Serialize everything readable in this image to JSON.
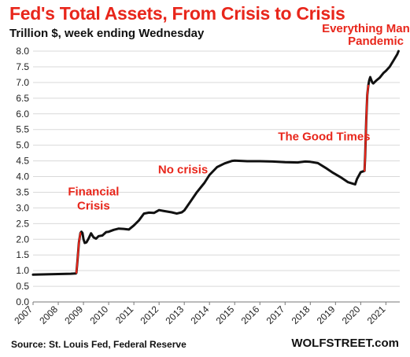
{
  "header": {
    "title": "Fed's Total Assets, From Crisis to Crisis",
    "subtitle": "Trillion $, week ending Wednesday"
  },
  "footer": {
    "source": "Source: St. Louis Fed, Federal Reserve",
    "brand": "WOLFSTREET.com"
  },
  "colors": {
    "title": "#e8261b",
    "annotation": "#e8261b",
    "line": "#111111",
    "crisis_segment": "#e8261b",
    "grid": "#d9d9d9",
    "axis": "#777777"
  },
  "chart_data": {
    "type": "line",
    "title": "Fed's Total Assets, From Crisis to Crisis",
    "subtitle": "Trillion $, week ending Wednesday",
    "xlabel": "",
    "ylabel": "",
    "xlim": [
      2007,
      2021.55
    ],
    "ylim": [
      0,
      8.0
    ],
    "yticks": [
      "0.0",
      "0.5",
      "1.0",
      "1.5",
      "2.0",
      "2.5",
      "3.0",
      "3.5",
      "4.0",
      "4.5",
      "5.0",
      "5.5",
      "6.0",
      "6.5",
      "7.0",
      "7.5",
      "8.0"
    ],
    "xticks": [
      "2007",
      "2008",
      "2009",
      "2010",
      "2011",
      "2012",
      "2013",
      "2014",
      "2015",
      "2016",
      "2017",
      "2018",
      "2019",
      "2020",
      "2021"
    ],
    "grid": "horizontal",
    "series": [
      {
        "x": [
          2007.0,
          2007.5,
          2008.0,
          2008.5,
          2008.7,
          2008.72,
          2008.76,
          2008.82,
          2008.88,
          2008.92,
          2008.96,
          2009.0,
          2009.05,
          2009.12,
          2009.2,
          2009.3,
          2009.4,
          2009.5,
          2009.6,
          2009.75,
          2009.9,
          2010.0,
          2010.2,
          2010.4,
          2010.6,
          2010.8,
          2011.0,
          2011.2,
          2011.4,
          2011.6,
          2011.8,
          2012.0,
          2012.2,
          2012.5,
          2012.7,
          2012.9,
          2013.0,
          2013.2,
          2013.5,
          2013.8,
          2014.0,
          2014.3,
          2014.6,
          2014.9,
          2015.0,
          2015.5,
          2016.0,
          2016.5,
          2017.0,
          2017.5,
          2017.8,
          2018.0,
          2018.3,
          2018.6,
          2018.9,
          2019.2,
          2019.5,
          2019.7,
          2019.78,
          2019.85,
          2020.0,
          2020.15,
          2020.18,
          2020.22,
          2020.26,
          2020.3,
          2020.34,
          2020.38,
          2020.42,
          2020.46,
          2020.5,
          2020.6,
          2020.75,
          2020.9,
          2021.0,
          2021.15,
          2021.3,
          2021.45,
          2021.5
        ],
        "y": [
          0.87,
          0.88,
          0.89,
          0.9,
          0.91,
          0.93,
          1.3,
          1.9,
          2.2,
          2.24,
          2.2,
          2.0,
          1.88,
          1.9,
          2.02,
          2.19,
          2.06,
          2.02,
          2.1,
          2.12,
          2.23,
          2.24,
          2.3,
          2.34,
          2.33,
          2.31,
          2.44,
          2.6,
          2.82,
          2.85,
          2.84,
          2.93,
          2.9,
          2.86,
          2.82,
          2.86,
          2.92,
          3.15,
          3.5,
          3.8,
          4.05,
          4.3,
          4.42,
          4.5,
          4.51,
          4.49,
          4.49,
          4.48,
          4.46,
          4.45,
          4.48,
          4.47,
          4.43,
          4.28,
          4.12,
          3.98,
          3.82,
          3.77,
          3.75,
          3.92,
          4.14,
          4.18,
          4.7,
          5.8,
          6.6,
          6.9,
          7.07,
          7.17,
          7.08,
          7.0,
          6.97,
          7.05,
          7.15,
          7.3,
          7.37,
          7.5,
          7.7,
          7.9,
          8.0
        ]
      }
    ],
    "annotations": [
      {
        "text": "Financial",
        "x": 2009.4,
        "y": 3.4
      },
      {
        "text": "Crisis",
        "x": 2009.4,
        "y": 2.95
      },
      {
        "text": "No crisis",
        "x": 2012.95,
        "y": 4.1
      },
      {
        "text": "The Good Times",
        "x": 2018.55,
        "y": 5.15
      },
      {
        "text": "Everything Mania",
        "x": 2020.4,
        "y": 8.6
      },
      {
        "text": "Pandemic",
        "x": 2020.6,
        "y": 8.2
      }
    ]
  }
}
